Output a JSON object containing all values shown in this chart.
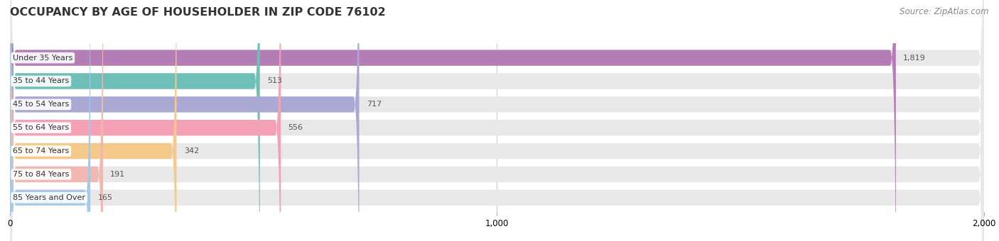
{
  "title": "OCCUPANCY BY AGE OF HOUSEHOLDER IN ZIP CODE 76102",
  "source": "Source: ZipAtlas.com",
  "categories": [
    "Under 35 Years",
    "35 to 44 Years",
    "45 to 54 Years",
    "55 to 64 Years",
    "65 to 74 Years",
    "75 to 84 Years",
    "85 Years and Over"
  ],
  "values": [
    1819,
    513,
    717,
    556,
    342,
    191,
    165
  ],
  "bar_colors": [
    "#b57db5",
    "#6dbfb8",
    "#a9a9d4",
    "#f4a0b5",
    "#f5c98a",
    "#f0b8b0",
    "#a8c8e8"
  ],
  "xlim": [
    0,
    2000
  ],
  "xticks": [
    0,
    1000,
    2000
  ],
  "background_color": "#ffffff",
  "bar_background_color": "#e8e8e8",
  "title_fontsize": 11.5,
  "source_fontsize": 8.5,
  "label_fontsize": 8,
  "value_fontsize": 8,
  "tick_fontsize": 8.5
}
